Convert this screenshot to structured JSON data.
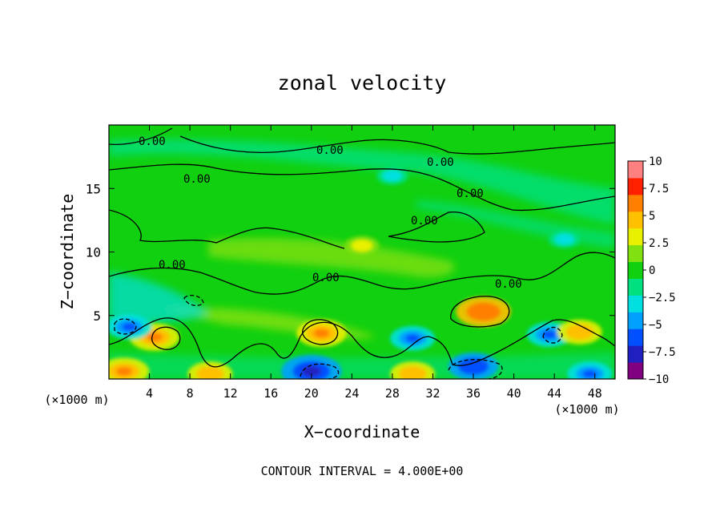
{
  "chart_data": {
    "type": "heatmap",
    "title": "zonal velocity",
    "xlabel": "X−coordinate",
    "ylabel": "Z−coordinate",
    "x_unit": "(×1000 m)",
    "y_unit": "(×1000 m)",
    "xlim": [
      0,
      50
    ],
    "ylim": [
      0,
      20
    ],
    "x_ticks": [
      "4",
      "8",
      "12",
      "16",
      "20",
      "24",
      "28",
      "32",
      "36",
      "40",
      "44",
      "48"
    ],
    "y_ticks": [
      "5",
      "10",
      "15"
    ],
    "contour_labels": [
      "0.00",
      "0.00",
      "0.00",
      "0.00",
      "0.00",
      "0.00",
      "0.00",
      "0.00",
      "0.00"
    ],
    "footer": "CONTOUR INTERVAL = 4.000E+00",
    "colorbar": {
      "range": [
        -10,
        10
      ],
      "tick_labels": [
        "10",
        "7.5",
        "5",
        "2.5",
        "0",
        "−2.5",
        "−5",
        "−7.5",
        "−10"
      ],
      "colors": [
        "#800080",
        "#2020c0",
        "#0050ff",
        "#00a0ff",
        "#00e0e0",
        "#00e080",
        "#10d010",
        "#80e010",
        "#e8f000",
        "#ffc000",
        "#ff8000",
        "#ff2000",
        "#ff8080"
      ]
    },
    "features": [
      {
        "x": 37,
        "z": 5.3,
        "value": 7
      },
      {
        "x": 21,
        "z": 3.6,
        "value": 6
      },
      {
        "x": 4.5,
        "z": 3.3,
        "value": 6
      },
      {
        "x": 1.5,
        "z": 0.6,
        "value": 6
      },
      {
        "x": 20,
        "z": 0.6,
        "value": -8
      },
      {
        "x": 36,
        "z": 1.0,
        "value": -6
      },
      {
        "x": 30,
        "z": 3.2,
        "value": -5
      },
      {
        "x": 43.5,
        "z": 3.5,
        "value": -5
      },
      {
        "x": 2,
        "z": 4.1,
        "value": -5
      },
      {
        "x": 47.5,
        "z": 0.4,
        "value": -5
      },
      {
        "x": 46.5,
        "z": 3.7,
        "value": 5
      },
      {
        "x": 30,
        "z": 0.4,
        "value": 5
      },
      {
        "x": 10,
        "z": 0.4,
        "value": 5
      },
      {
        "x": 25,
        "z": 10.5,
        "value": 3
      },
      {
        "x": 28,
        "z": 16,
        "value": -2.5
      },
      {
        "x": 45,
        "z": 11,
        "value": -2.5
      }
    ]
  }
}
